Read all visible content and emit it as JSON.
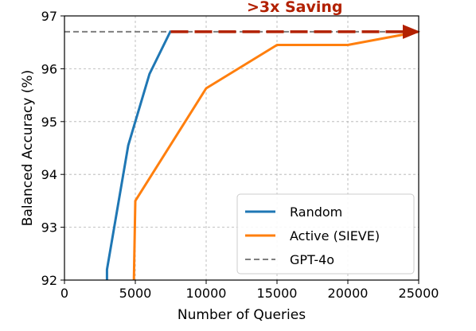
{
  "chart_data": {
    "type": "line",
    "title": "",
    "xlabel": "Number of Queries",
    "ylabel": "Balanced Accuracy (%)",
    "xlim": [
      0,
      25000
    ],
    "ylim": [
      92,
      97
    ],
    "x_ticks": [
      0,
      5000,
      10000,
      15000,
      20000,
      25000
    ],
    "y_ticks": [
      92,
      93,
      94,
      95,
      96,
      97
    ],
    "x_tick_labels": [
      "0",
      "5000",
      "10000",
      "15000",
      "20000",
      "25000"
    ],
    "y_tick_labels": [
      "92",
      "93",
      "94",
      "95",
      "96",
      "97"
    ],
    "grid": true,
    "legend_position": "lower-right",
    "series": [
      {
        "name": "Random",
        "color": "#1f77b4",
        "style": "solid",
        "x": [
          3000,
          3000,
          4500,
          6000,
          7500
        ],
        "y": [
          92.0,
          92.2,
          94.55,
          95.9,
          96.72
        ]
      },
      {
        "name": "Active (SIEVE)",
        "color": "#ff7f0e",
        "style": "solid",
        "x": [
          4900,
          5000,
          10000,
          15000,
          20000,
          25000
        ],
        "y": [
          92.0,
          93.5,
          95.63,
          96.45,
          96.45,
          96.7
        ]
      },
      {
        "name": "GPT-4o",
        "color": "#7f7f7f",
        "style": "dashed",
        "x": [
          0,
          25000
        ],
        "y": [
          96.7,
          96.7
        ]
      }
    ],
    "annotations": [
      {
        "text": ">3x Saving",
        "color": "#b22000",
        "arrow_from": [
          7500,
          96.7
        ],
        "arrow_to": [
          25000,
          96.7
        ]
      }
    ]
  }
}
